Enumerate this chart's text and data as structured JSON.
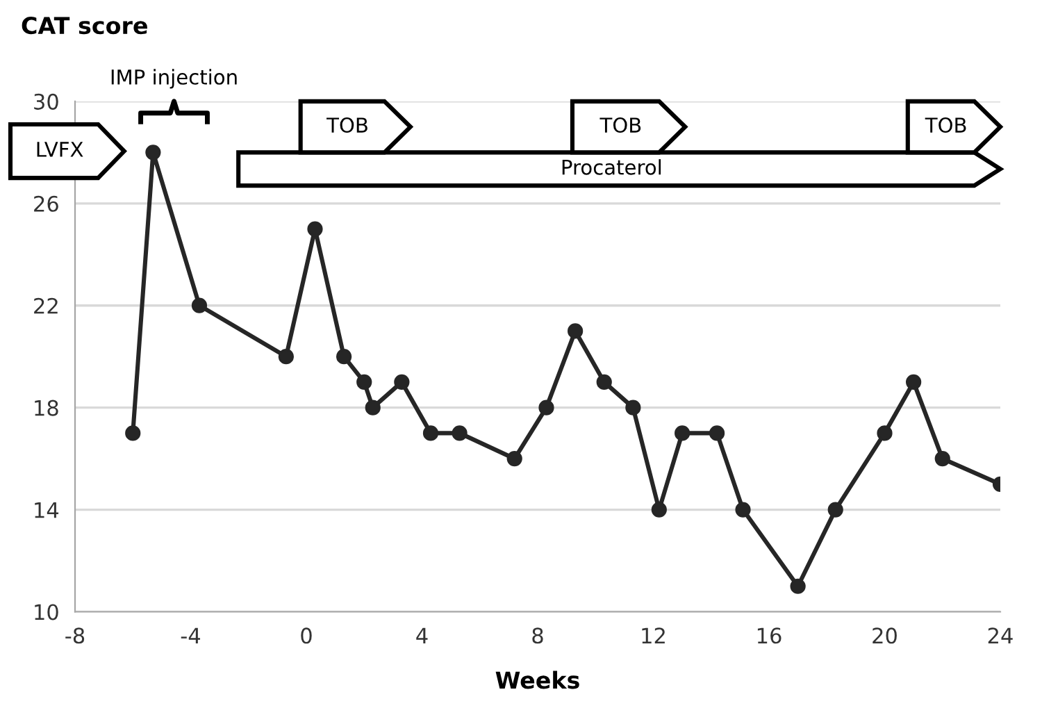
{
  "chart_data": {
    "type": "line",
    "ylabel": "CAT score",
    "xlabel": "Weeks",
    "x": [
      -6.0,
      -5.3,
      -3.7,
      -0.7,
      0.3,
      1.3,
      2.0,
      2.3,
      3.3,
      4.3,
      5.3,
      7.2,
      8.3,
      9.3,
      10.3,
      11.3,
      12.2,
      13.0,
      14.2,
      15.1,
      17.0,
      18.3,
      20.0,
      21.0,
      22.0,
      24.0
    ],
    "series": [
      {
        "color": "#262626",
        "values": [
          17,
          28,
          22,
          20,
          25,
          20,
          19,
          18,
          19,
          17,
          17,
          16,
          18,
          21,
          19,
          18,
          14,
          17,
          17,
          14,
          11,
          14,
          17,
          19,
          16,
          15
        ]
      }
    ],
    "xlim": [
      -8,
      24
    ],
    "xticks": [
      -8,
      -4,
      0,
      4,
      8,
      12,
      16,
      20,
      24
    ],
    "ylim": [
      10,
      30
    ],
    "yticks": [
      10,
      14,
      18,
      22,
      26,
      30
    ],
    "grid": "y",
    "marker": "circle",
    "line_style": "solid",
    "bands": [
      {
        "axis": "x",
        "from": -2.35,
        "to": 24,
        "label": "Procaterol"
      },
      {
        "axis": "x",
        "from": -8,
        "to": -6.3,
        "label": "LVFX"
      },
      {
        "axis": "x",
        "from": -0.2,
        "to": 3.6,
        "label": "TOB"
      },
      {
        "axis": "x",
        "from": 9.2,
        "to": 13.1,
        "label": "TOB"
      },
      {
        "axis": "x",
        "from": 20.8,
        "to": 24,
        "label": "TOB"
      }
    ],
    "annotations": [
      "IMP injection"
    ]
  }
}
